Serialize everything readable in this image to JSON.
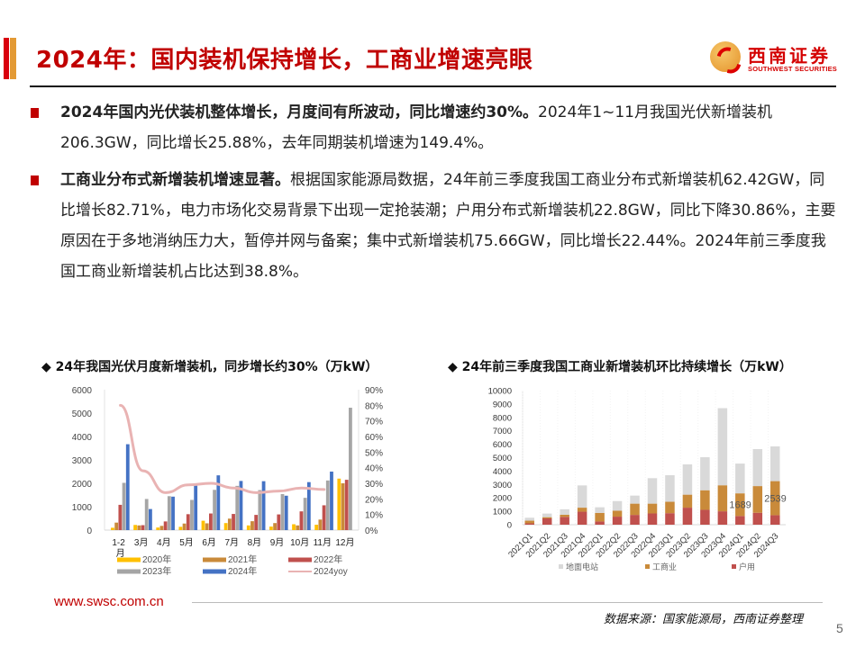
{
  "header": {
    "title": "2024年：国内装机保持增长，工商业增速亮眼",
    "logo_cn": "西南证券",
    "logo_en": "SOUTHWEST SECURITIES",
    "accent_colors": [
      "#d9000d",
      "#e39a35"
    ]
  },
  "bullets": [
    {
      "bold": "2024年国内光伏装机整体增长，月度间有所波动，同比增速约30%。",
      "text": "2024年1~11月我国光伏新增装机206.3GW，同比增长25.88%，去年同期装机增速为149.4%。"
    },
    {
      "bold": "工商业分布式新增装机增速显著。",
      "text": "根据国家能源局数据，24年前三季度我国工商业分布式新增装机62.42GW，同比增长82.71%，电力市场化交易背景下出现一定抢装潮；户用分布式新增装机22.8GW，同比下降30.86%，主要原因在于多地消纳压力大，暂停并网与备案；集中式新增装机75.66GW，同比增长22.44%。2024年前三季度我国工商业新增装机占比达到38.8%。"
    }
  ],
  "chart_titles": {
    "left": "◆ 24年我国光伏月度新增装机，同步增长约30%（万kW）",
    "right": "◆ 24年前三季度我国工商业新增装机环比持续增长（万kW）"
  },
  "chart_data": [
    {
      "type": "bar",
      "title": "24年我国光伏月度新增装机，同步增长约30%（万kW）",
      "categories": [
        "1-2月",
        "3月",
        "4月",
        "5月",
        "6月",
        "7月",
        "8月",
        "9月",
        "10月",
        "11月",
        "12月"
      ],
      "series": [
        {
          "name": "2020年",
          "color": "#ffc000",
          "values": [
            100,
            220,
            110,
            140,
            400,
            300,
            200,
            150,
            250,
            230,
            2200
          ]
        },
        {
          "name": "2021年",
          "color": "#c98a3a",
          "values": [
            320,
            200,
            180,
            280,
            290,
            490,
            380,
            300,
            200,
            450,
            2000
          ]
        },
        {
          "name": "2022年",
          "color": "#c0504d",
          "values": [
            1080,
            210,
            370,
            680,
            710,
            690,
            650,
            670,
            800,
            1060,
            2150
          ]
        },
        {
          "name": "2023年",
          "color": "#a5a5a5",
          "values": [
            2020,
            1330,
            1450,
            1290,
            1720,
            1890,
            1710,
            1540,
            1380,
            2120,
            5230
          ]
        },
        {
          "name": "2024年",
          "color": "#4472c4",
          "values": [
            3670,
            900,
            1430,
            1900,
            2340,
            2100,
            2090,
            1470,
            2050,
            2500,
            null
          ]
        }
      ],
      "line_series": {
        "name": "2024yoy",
        "color": "#e9b3b3",
        "axis": "right",
        "values": [
          0.8,
          0.38,
          0.24,
          0.29,
          0.3,
          0.27,
          0.24,
          0.25,
          0.27,
          0.26,
          null
        ]
      },
      "ylim": [
        0,
        6000
      ],
      "yticks": [
        "0",
        "1000",
        "2000",
        "3000",
        "4000",
        "5000",
        "6000"
      ],
      "y2lim": [
        0,
        0.9
      ],
      "y2ticks": [
        "0%",
        "10%",
        "20%",
        "30%",
        "40%",
        "50%",
        "60%",
        "70%",
        "80%",
        "90%"
      ],
      "legend": [
        "2020年",
        "2021年",
        "2022年",
        "2023年",
        "2024年",
        "2024yoy"
      ],
      "legend_position": "bottom",
      "grid": false
    },
    {
      "type": "bar",
      "stacked": true,
      "title": "24年前三季度我国工商业新增装机环比持续增长（万kW）",
      "categories": [
        "2021Q1",
        "2021Q2",
        "2021Q3",
        "2021Q4",
        "2022Q1",
        "2022Q2",
        "2022Q3",
        "2022Q4",
        "2023Q1",
        "2023Q2",
        "2023Q3",
        "2023Q4",
        "2024Q1",
        "2024Q2",
        "2024Q3"
      ],
      "series": [
        {
          "name": "户用",
          "color": "#c0504d",
          "values": [
            100,
            470,
            580,
            970,
            240,
            600,
            730,
            840,
            860,
            1270,
            1110,
            1000,
            650,
            890,
            710
          ]
        },
        {
          "name": "工商业",
          "color": "#c98a3a",
          "values": [
            200,
            90,
            160,
            300,
            640,
            440,
            840,
            730,
            850,
            970,
            1460,
            1940,
            1689,
            1990,
            2539
          ]
        },
        {
          "name": "地面电站",
          "color": "#d9d9d9",
          "values": [
            220,
            270,
            410,
            1660,
            420,
            720,
            600,
            1900,
            1980,
            2260,
            2460,
            5750,
            2220,
            2760,
            2590
          ]
        }
      ],
      "data_labels": [
        {
          "category": "2024Q1",
          "series": "工商业",
          "value": "1689"
        },
        {
          "category": "2024Q3",
          "series": "工商业",
          "value": "2539"
        }
      ],
      "ylim": [
        0,
        10000
      ],
      "yticks": [
        "0",
        "1000",
        "2000",
        "3000",
        "4000",
        "5000",
        "6000",
        "7000",
        "8000",
        "9000",
        "10000"
      ],
      "legend": [
        "地面电站",
        "工商业",
        "户用"
      ],
      "legend_position": "bottom",
      "grid": true
    }
  ],
  "footer": {
    "url": "www.swsc.com.cn",
    "source": "数据来源：国家能源局，西南证券整理",
    "page": "5"
  }
}
